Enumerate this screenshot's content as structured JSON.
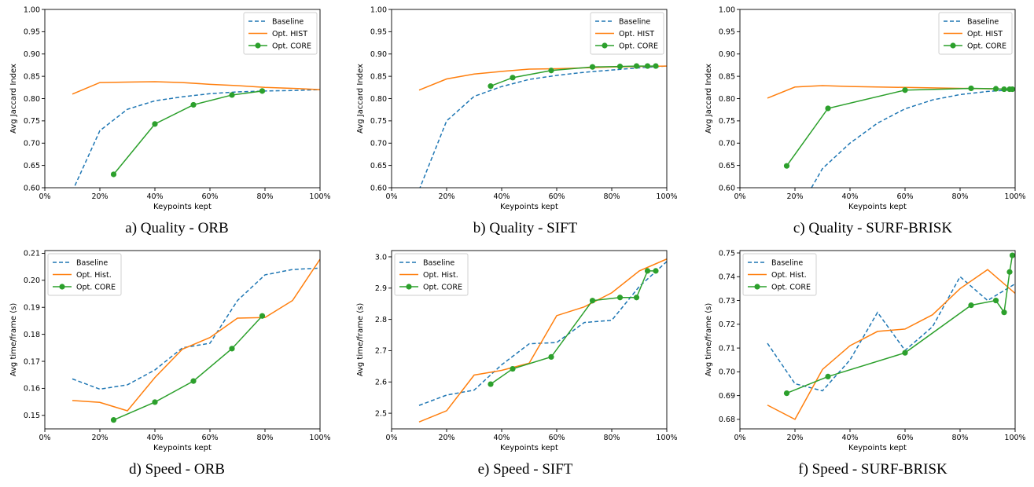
{
  "colors": {
    "baseline": "#1f77b4",
    "hist": "#ff7f0e",
    "core": "#2ca02c",
    "axis": "#000000",
    "legend_border": "#cccccc"
  },
  "chart_data": [
    {
      "type": "line",
      "caption": "a) Quality - ORB",
      "xlabel": "Keypoints kept",
      "ylabel": "Avg Jaccard Index",
      "xlim": [
        0,
        100
      ],
      "ylim": [
        0.6,
        1.0
      ],
      "xticks": [
        0,
        20,
        40,
        60,
        80,
        100
      ],
      "xtick_labels": [
        "0%",
        "20%",
        "40%",
        "60%",
        "80%",
        "100%"
      ],
      "yticks": [
        0.6,
        0.65,
        0.7,
        0.75,
        0.8,
        0.85,
        0.9,
        0.95,
        1.0
      ],
      "ytick_labels": [
        "0.60",
        "0.65",
        "0.70",
        "0.75",
        "0.80",
        "0.85",
        "0.90",
        "0.95",
        "1.00"
      ],
      "legend_position": "top-right",
      "grid": false,
      "series": [
        {
          "name": "Baseline",
          "style": "dashed",
          "x": [
            10,
            20,
            30,
            40,
            50,
            60,
            70,
            80,
            90,
            100
          ],
          "y": [
            0.592,
            0.728,
            0.776,
            0.795,
            0.804,
            0.811,
            0.815,
            0.817,
            0.818,
            0.82
          ]
        },
        {
          "name": "Opt. HIST",
          "style": "solid",
          "x": [
            10,
            20,
            30,
            40,
            50,
            60,
            70,
            80,
            90,
            100
          ],
          "y": [
            0.81,
            0.836,
            0.837,
            0.838,
            0.836,
            0.832,
            0.829,
            0.825,
            0.823,
            0.82
          ]
        },
        {
          "name": "Opt. CORE",
          "style": "marker",
          "x": [
            25,
            40,
            54,
            68,
            79
          ],
          "y": [
            0.63,
            0.743,
            0.786,
            0.808,
            0.817
          ]
        }
      ]
    },
    {
      "type": "line",
      "caption": "b) Quality - SIFT",
      "xlabel": "Keypoints kept",
      "ylabel": "Avg Jaccard Index",
      "xlim": [
        0,
        100
      ],
      "ylim": [
        0.6,
        1.0
      ],
      "xticks": [
        0,
        20,
        40,
        60,
        80,
        100
      ],
      "xtick_labels": [
        "0%",
        "20%",
        "40%",
        "60%",
        "80%",
        "100%"
      ],
      "yticks": [
        0.6,
        0.65,
        0.7,
        0.75,
        0.8,
        0.85,
        0.9,
        0.95,
        1.0
      ],
      "ytick_labels": [
        "0.60",
        "0.65",
        "0.70",
        "0.75",
        "0.80",
        "0.85",
        "0.90",
        "0.95",
        "1.00"
      ],
      "legend_position": "top-right",
      "grid": false,
      "series": [
        {
          "name": "Baseline",
          "style": "dashed",
          "x": [
            10,
            20,
            30,
            40,
            50,
            60,
            70,
            80,
            90,
            100
          ],
          "y": [
            0.595,
            0.75,
            0.805,
            0.827,
            0.843,
            0.852,
            0.859,
            0.864,
            0.869,
            0.873
          ]
        },
        {
          "name": "Opt. HIST",
          "style": "solid",
          "x": [
            10,
            20,
            30,
            40,
            50,
            60,
            70,
            80,
            90,
            100
          ],
          "y": [
            0.819,
            0.844,
            0.855,
            0.861,
            0.866,
            0.867,
            0.869,
            0.871,
            0.872,
            0.873
          ]
        },
        {
          "name": "Opt. CORE",
          "style": "marker",
          "x": [
            36,
            44,
            58,
            73,
            83,
            89,
            93,
            96
          ],
          "y": [
            0.828,
            0.847,
            0.863,
            0.871,
            0.872,
            0.873,
            0.873,
            0.873
          ]
        }
      ]
    },
    {
      "type": "line",
      "caption": "c) Quality - SURF-BRISK",
      "xlabel": "Keypoints kept",
      "ylabel": "Avg Jaccard Index",
      "xlim": [
        0,
        100
      ],
      "ylim": [
        0.6,
        1.0
      ],
      "xticks": [
        0,
        20,
        40,
        60,
        80,
        100
      ],
      "xtick_labels": [
        "0%",
        "20%",
        "40%",
        "60%",
        "80%",
        "100%"
      ],
      "yticks": [
        0.6,
        0.65,
        0.7,
        0.75,
        0.8,
        0.85,
        0.9,
        0.95,
        1.0
      ],
      "ytick_labels": [
        "0.60",
        "0.65",
        "0.70",
        "0.75",
        "0.80",
        "0.85",
        "0.90",
        "0.95",
        "1.00"
      ],
      "legend_position": "top-right",
      "grid": false,
      "series": [
        {
          "name": "Baseline",
          "style": "dashed",
          "x": [
            26,
            30,
            40,
            50,
            60,
            70,
            80,
            90,
            100
          ],
          "y": [
            0.6,
            0.643,
            0.7,
            0.745,
            0.777,
            0.797,
            0.809,
            0.816,
            0.82
          ]
        },
        {
          "name": "Opt. HIST",
          "style": "solid",
          "x": [
            10,
            20,
            30,
            40,
            50,
            60,
            70,
            80,
            90,
            100
          ],
          "y": [
            0.801,
            0.826,
            0.829,
            0.827,
            0.826,
            0.825,
            0.824,
            0.823,
            0.822,
            0.821
          ]
        },
        {
          "name": "Opt. CORE",
          "style": "marker",
          "x": [
            17,
            32,
            60,
            84,
            93,
            96,
            98,
            99
          ],
          "y": [
            0.649,
            0.778,
            0.819,
            0.823,
            0.822,
            0.821,
            0.821,
            0.821
          ]
        }
      ]
    },
    {
      "type": "line",
      "caption": "d) Speed - ORB",
      "xlabel": "Keypoints kept",
      "ylabel": "Avg time/frame (s)",
      "xlim": [
        0,
        100
      ],
      "ylim": [
        0.145,
        0.211
      ],
      "xticks": [
        0,
        20,
        40,
        60,
        80,
        100
      ],
      "xtick_labels": [
        "0%",
        "20%",
        "40%",
        "60%",
        "80%",
        "100%"
      ],
      "yticks": [
        0.15,
        0.16,
        0.17,
        0.18,
        0.19,
        0.2,
        0.21
      ],
      "ytick_labels": [
        "0.15",
        "0.16",
        "0.17",
        "0.18",
        "0.19",
        "0.20",
        "0.21"
      ],
      "legend_position": "top-left",
      "grid": false,
      "series": [
        {
          "name": "Baseline",
          "style": "dashed",
          "x": [
            10,
            20,
            30,
            40,
            50,
            60,
            70,
            80,
            90,
            100
          ],
          "y": [
            0.1635,
            0.1597,
            0.1613,
            0.1668,
            0.175,
            0.1767,
            0.1925,
            0.202,
            0.204,
            0.2045
          ]
        },
        {
          "name": "Opt. Hist.",
          "style": "solid",
          "x": [
            10,
            20,
            30,
            40,
            50,
            60,
            70,
            80,
            90,
            100
          ],
          "y": [
            0.1555,
            0.1548,
            0.1517,
            0.164,
            0.1745,
            0.1788,
            0.186,
            0.1862,
            0.1925,
            0.2078
          ]
        },
        {
          "name": "Opt. CORE",
          "style": "marker",
          "x": [
            25,
            40,
            54,
            68,
            79
          ],
          "y": [
            0.1483,
            0.1549,
            0.1627,
            0.1747,
            0.1868
          ]
        }
      ]
    },
    {
      "type": "line",
      "caption": "e) Speed - SIFT",
      "xlabel": "Keypoints kept",
      "ylabel": "Avg time/frame (s)",
      "xlim": [
        0,
        100
      ],
      "ylim": [
        2.45,
        3.02
      ],
      "xticks": [
        0,
        20,
        40,
        60,
        80,
        100
      ],
      "xtick_labels": [
        "0%",
        "20%",
        "40%",
        "60%",
        "80%",
        "100%"
      ],
      "yticks": [
        2.5,
        2.6,
        2.7,
        2.8,
        2.9,
        3.0
      ],
      "ytick_labels": [
        "2.5",
        "2.6",
        "2.7",
        "2.8",
        "2.9",
        "3.0"
      ],
      "legend_position": "top-left",
      "grid": false,
      "series": [
        {
          "name": "Baseline",
          "style": "dashed",
          "x": [
            10,
            20,
            30,
            40,
            50,
            60,
            70,
            80,
            90,
            100
          ],
          "y": [
            2.525,
            2.558,
            2.574,
            2.655,
            2.722,
            2.726,
            2.79,
            2.797,
            2.905,
            2.985
          ]
        },
        {
          "name": "Opt. Hist.",
          "style": "solid",
          "x": [
            10,
            20,
            30,
            40,
            50,
            60,
            70,
            80,
            90,
            100
          ],
          "y": [
            2.472,
            2.508,
            2.622,
            2.637,
            2.66,
            2.812,
            2.84,
            2.885,
            2.955,
            2.993
          ]
        },
        {
          "name": "Opt. CORE",
          "style": "marker",
          "x": [
            36,
            44,
            58,
            73,
            83,
            89,
            93,
            96
          ],
          "y": [
            2.593,
            2.642,
            2.68,
            2.86,
            2.87,
            2.87,
            2.955,
            2.955
          ]
        }
      ]
    },
    {
      "type": "line",
      "caption": "f) Speed - SURF-BRISK",
      "xlabel": "Keypoints kept",
      "ylabel": "Avg time/frame (s)",
      "xlim": [
        0,
        100
      ],
      "ylim": [
        0.676,
        0.751
      ],
      "xticks": [
        0,
        20,
        40,
        60,
        80,
        100
      ],
      "xtick_labels": [
        "0%",
        "20%",
        "40%",
        "60%",
        "80%",
        "100%"
      ],
      "yticks": [
        0.68,
        0.69,
        0.7,
        0.71,
        0.72,
        0.73,
        0.74,
        0.75
      ],
      "ytick_labels": [
        "0.68",
        "0.69",
        "0.70",
        "0.71",
        "0.72",
        "0.73",
        "0.74",
        "0.75"
      ],
      "legend_position": "top-left",
      "grid": false,
      "series": [
        {
          "name": "Baseline",
          "style": "dashed",
          "x": [
            10,
            20,
            30,
            40,
            50,
            60,
            70,
            80,
            90,
            100
          ],
          "y": [
            0.712,
            0.695,
            0.692,
            0.705,
            0.725,
            0.709,
            0.719,
            0.74,
            0.73,
            0.737
          ]
        },
        {
          "name": "Opt. Hist.",
          "style": "solid",
          "x": [
            10,
            20,
            30,
            40,
            50,
            60,
            70,
            80,
            90,
            100
          ],
          "y": [
            0.686,
            0.68,
            0.701,
            0.711,
            0.717,
            0.718,
            0.724,
            0.735,
            0.743,
            0.733
          ]
        },
        {
          "name": "Opt. CORE",
          "style": "marker",
          "x": [
            17,
            32,
            60,
            84,
            93,
            96,
            98,
            99
          ],
          "y": [
            0.691,
            0.698,
            0.708,
            0.728,
            0.73,
            0.725,
            0.742,
            0.749
          ]
        }
      ]
    }
  ]
}
